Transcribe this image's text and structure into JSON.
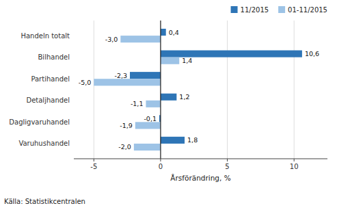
{
  "chart_data": {
    "type": "bar",
    "orientation": "horizontal",
    "categories": [
      "Varuhushandel",
      "Dagligvaruhandel",
      "Detaljhandel",
      "Partihandel",
      "Bilhandel",
      "Handeln totalt"
    ],
    "series": [
      {
        "name": "11/2015",
        "color": "#2E75B6",
        "values": [
          1.8,
          -0.1,
          1.2,
          -2.3,
          10.6,
          0.4
        ],
        "value_labels": [
          "1,8",
          "-0,1",
          "1,2",
          "-2,3",
          "10,6",
          "0,4"
        ]
      },
      {
        "name": "01-11/2015",
        "color": "#9DC3E6",
        "values": [
          -2.0,
          -1.9,
          -1.1,
          -5.0,
          1.4,
          -3.0
        ],
        "value_labels": [
          "-2,0",
          "-1,9",
          "-1,1",
          "-5,0",
          "1,4",
          "-3,0"
        ]
      }
    ],
    "xlabel": "Årsförändring, %",
    "xlim": [
      -6.5,
      12.5
    ],
    "xticks": [
      -5,
      0,
      5,
      10
    ],
    "grid": true,
    "legend": "upper right",
    "data_labels": true,
    "annotations": [
      "Källa: Statistikcentralen"
    ]
  }
}
